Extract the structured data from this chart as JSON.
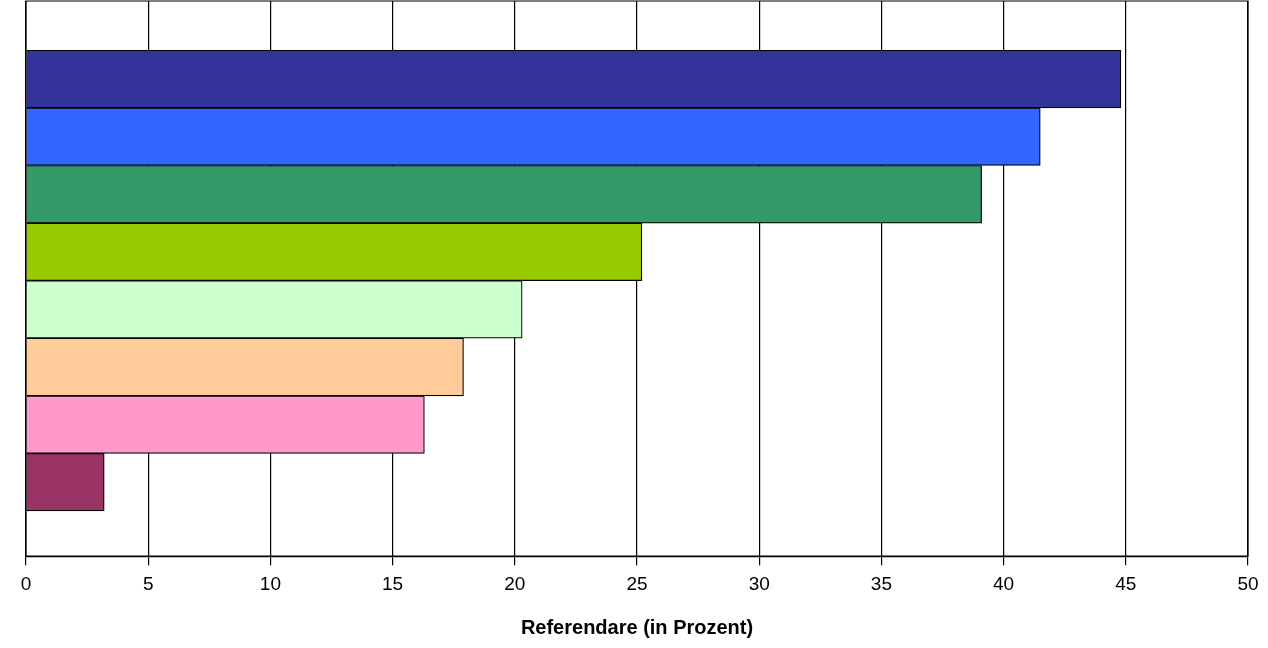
{
  "chart_data": {
    "type": "bar",
    "orientation": "horizontal",
    "xlabel": "Referendare (in Prozent)",
    "categories": [
      null,
      null,
      null,
      null,
      null,
      null,
      null,
      null
    ],
    "values": [
      44.8,
      41.5,
      39.1,
      25.2,
      20.3,
      17.9,
      16.3,
      3.2
    ],
    "colors": [
      "#333399",
      "#3366ff",
      "#339966",
      "#99cc00",
      "#ccffcc",
      "#ffcc99",
      "#ff99cc",
      "#993366"
    ],
    "xlim": [
      0,
      50
    ],
    "xticks": [
      0,
      5,
      10,
      15,
      20,
      25,
      30,
      35,
      40,
      45,
      50
    ],
    "grid": "x",
    "legend": false
  }
}
